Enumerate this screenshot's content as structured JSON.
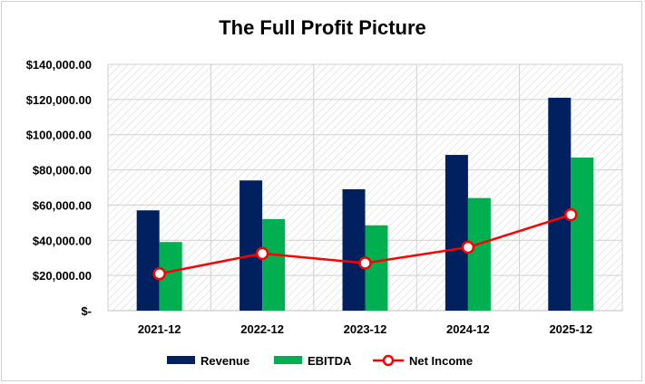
{
  "chart_data": {
    "type": "bar",
    "title": "The Full Profit Picture",
    "categories": [
      "2021-12",
      "2022-12",
      "2023-12",
      "2024-12",
      "2025-12"
    ],
    "series": [
      {
        "name": "Revenue",
        "type": "bar",
        "color": "#002060",
        "values": [
          57000,
          74000,
          69000,
          88500,
          121000
        ]
      },
      {
        "name": "EBITDA",
        "type": "bar",
        "color": "#00B050",
        "values": [
          39000,
          52000,
          48500,
          64000,
          87000
        ]
      },
      {
        "name": "Net Income",
        "type": "line",
        "color": "#FF0000",
        "marker": "circle-open",
        "values": [
          21000,
          32500,
          27000,
          36000,
          54500
        ]
      }
    ],
    "ylim": [
      0,
      140000
    ],
    "yticks": [
      0,
      20000,
      40000,
      60000,
      80000,
      100000,
      120000,
      140000
    ],
    "ytick_labels": [
      "$-",
      "$20,000.00",
      "$40,000.00",
      "$60,000.00",
      "$80,000.00",
      "$100,000.00",
      "$120,000.00",
      "$140,000.00"
    ],
    "xlabel": "",
    "ylabel": "",
    "grid": true,
    "legend_position": "bottom"
  }
}
